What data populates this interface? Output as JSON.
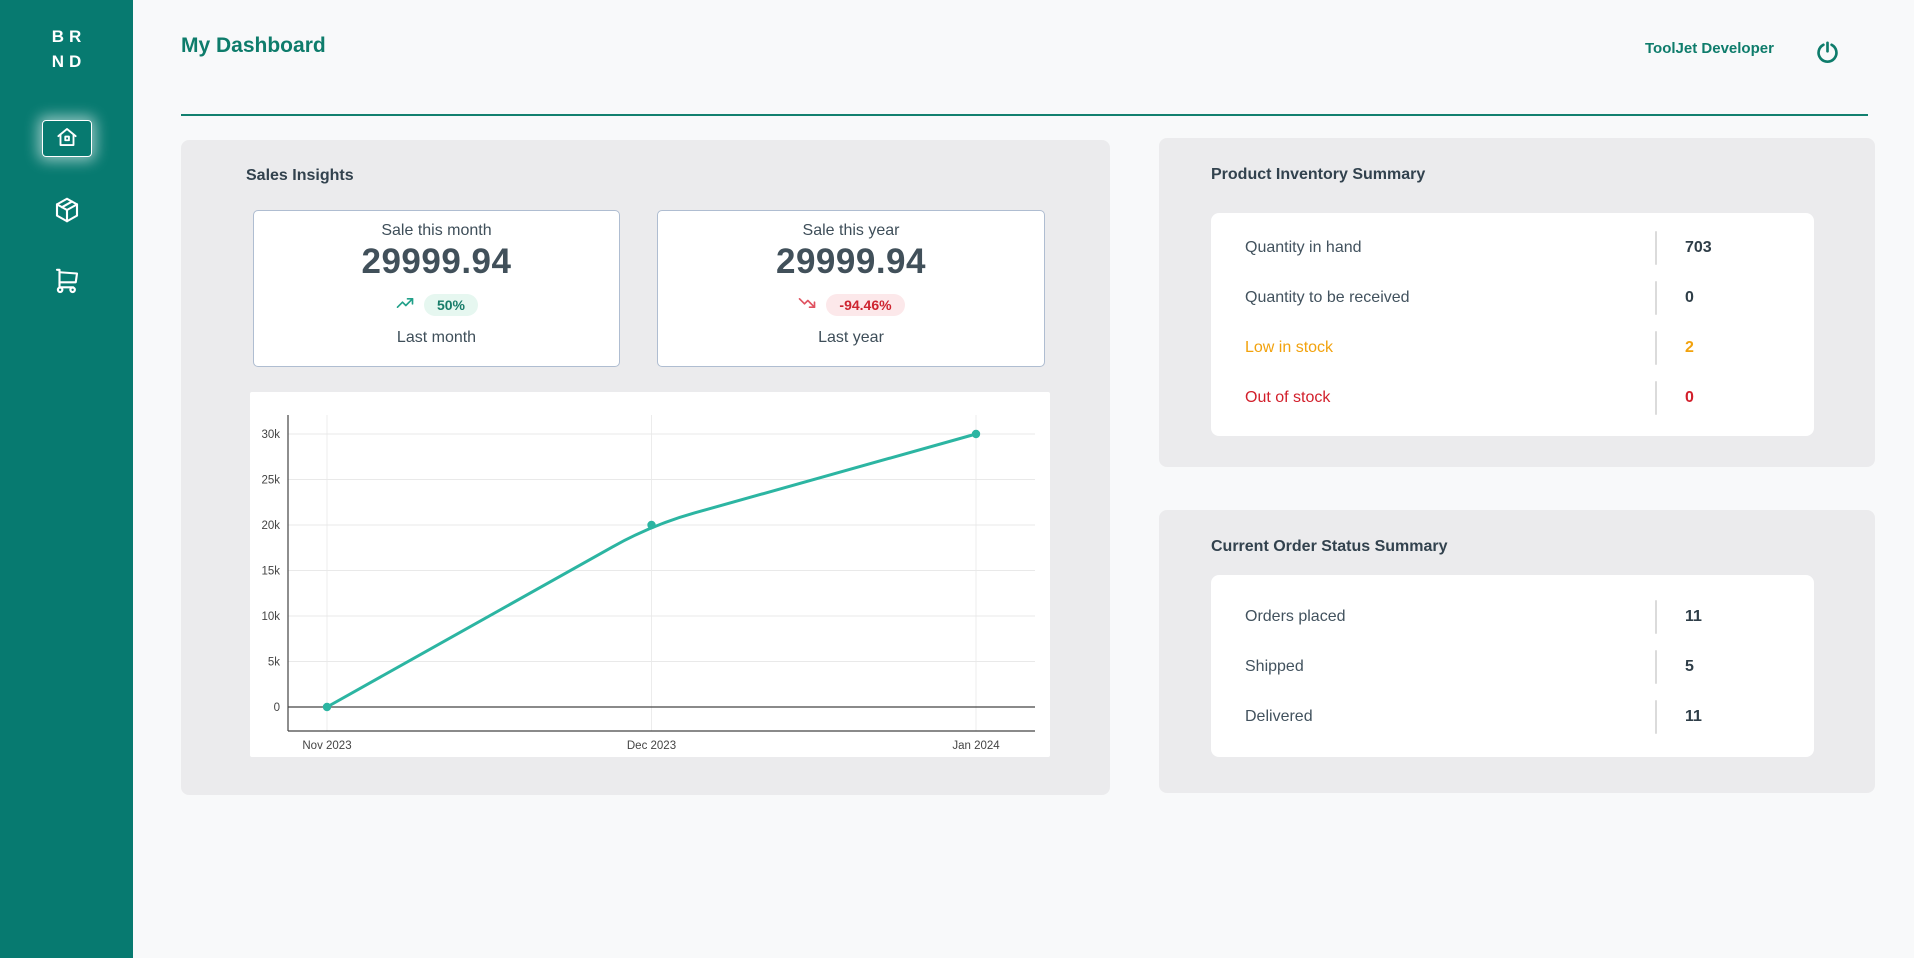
{
  "brand": {
    "line1": "BR",
    "line2": "ND"
  },
  "sidebar": {
    "items": [
      {
        "id": "home",
        "icon": "home-icon",
        "active": true
      },
      {
        "id": "products",
        "icon": "package-icon",
        "active": false
      },
      {
        "id": "orders",
        "icon": "cart-icon",
        "active": false
      }
    ]
  },
  "header": {
    "title": "My Dashboard",
    "user_label": "ToolJet Developer",
    "logout_icon": "power-icon"
  },
  "sales_insights": {
    "title": "Sales Insights",
    "stat_cards": [
      {
        "label": "Sale this month",
        "value": "29999.94",
        "delta": "50%",
        "trend": "up",
        "trend_icon": "trending-up-icon",
        "compare_label": "Last month"
      },
      {
        "label": "Sale this year",
        "value": "29999.94",
        "delta": "-94.46%",
        "trend": "down",
        "trend_icon": "trending-down-icon",
        "compare_label": "Last year"
      }
    ]
  },
  "chart_data": {
    "type": "line",
    "title": "",
    "xlabel": "",
    "ylabel": "",
    "x": [
      "Nov 2023",
      "Dec 2023",
      "Jan 2024"
    ],
    "series": [
      {
        "name": "Sales",
        "values": [
          0,
          20000,
          30000
        ]
      }
    ],
    "ytick_values": [
      0,
      5000,
      10000,
      15000,
      20000,
      25000,
      30000
    ],
    "ytick_labels": [
      "0",
      "5k",
      "10k",
      "15k",
      "20k",
      "25k",
      "30k"
    ],
    "ylim": [
      0,
      30000
    ],
    "grid": true,
    "legend": "none",
    "line_color": "#2CB5A2"
  },
  "inventory_summary": {
    "title": "Product Inventory Summary",
    "rows": [
      {
        "label": "Quantity in hand",
        "value": "703",
        "state": "normal"
      },
      {
        "label": "Quantity to be received",
        "value": "0",
        "state": "normal"
      },
      {
        "label": "Low in stock",
        "value": "2",
        "state": "warning"
      },
      {
        "label": "Out of stock",
        "value": "0",
        "state": "danger"
      }
    ]
  },
  "order_summary": {
    "title": "Current Order Status Summary",
    "rows": [
      {
        "label": "Orders placed",
        "value": "11"
      },
      {
        "label": "Shipped",
        "value": "5"
      },
      {
        "label": "Delivered",
        "value": "11"
      }
    ]
  },
  "colors": {
    "sidebar_bg": "#077A70",
    "accent_teal": "#0E7C6B",
    "panel_bg": "#EBEBED",
    "page_bg": "#F8F9FA",
    "card_border": "#AFBDD1",
    "warning": "#F2A20D",
    "danger": "#D21F2B",
    "badge_up_bg": "#E6F7F0",
    "badge_up_text": "#177C69",
    "badge_down_bg": "#FCE8EA",
    "badge_down_text": "#CE2430",
    "chart_line": "#2CB5A2"
  }
}
